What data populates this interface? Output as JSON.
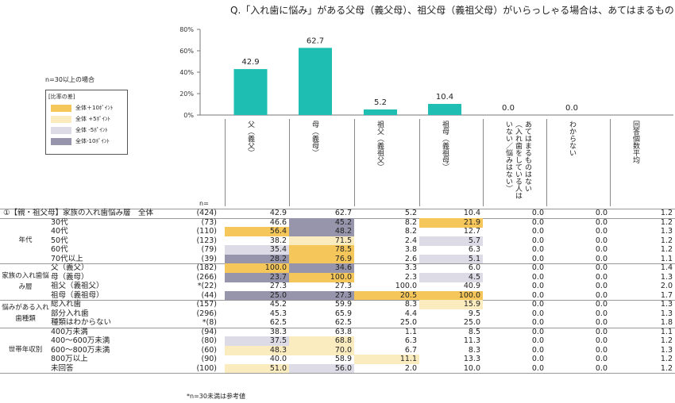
{
  "title": "Q.「入れ歯に悩み」がある父母（義父母）、祖父母（義祖父母）がいらっしゃる場合は、あてはまるものをすべてお",
  "note": "n=30以上の場合",
  "legend": {
    "title": "[比率の差]",
    "items": [
      {
        "label": "全体＋10ﾎﾟｲﾝﾄ",
        "color": "#f5c75a"
      },
      {
        "label": "全体 +5ﾎﾟｲﾝﾄ",
        "color": "#fbecc0"
      },
      {
        "label": "全体 -5ﾎﾟｲﾝﾄ",
        "color": "#dcdbe6"
      },
      {
        "label": "全体-10ﾎﾟｲﾝﾄ",
        "color": "#9695ab"
      }
    ]
  },
  "n_label": "n=",
  "footnote": "*n=30未満は参考値",
  "chart_data": {
    "type": "bar",
    "categories": [
      "父（義父）",
      "母（義母）",
      "祖父（義祖父）",
      "祖母（義祖母）",
      "あてはまるものはない（入れ歯をしている人はいない／悩みはない）",
      "わからない"
    ],
    "values": [
      42.9,
      62.7,
      5.2,
      10.4,
      0.0,
      0.0
    ],
    "value_labels": [
      "42.9",
      "62.7",
      "5.2",
      "10.4",
      "0.0",
      "0.0"
    ],
    "ylim": [
      0,
      80
    ],
    "yticks": [
      "0%",
      "20%",
      "40%",
      "60%",
      "80%"
    ],
    "bar_color": "#1ebfb2"
  },
  "columns": [
    "父（義父）",
    "母（義母）",
    "祖父（義祖父）",
    "祖母（義祖母）",
    "あてはまるものはない（入れ歯をしている人はいない／悩みはない）",
    "わからない",
    "回答個数平均"
  ],
  "table": {
    "total": {
      "label": "①【親・祖父母】家族の入れ歯悩み層　全体",
      "n": "(424)",
      "values": [
        "42.9",
        "62.7",
        "5.2",
        "10.4",
        "0.0",
        "0.0",
        "1.2"
      ],
      "hl": [
        "",
        "",
        "",
        "",
        "",
        "",
        ""
      ]
    },
    "groups": [
      {
        "label": "年代",
        "rows": [
          {
            "label": "30代",
            "n": "(73)",
            "values": [
              "46.6",
              "45.2",
              "8.2",
              "21.9",
              "0.0",
              "0.0",
              "1.2"
            ],
            "hl": [
              "",
              "m10",
              "",
              "p10",
              "",
              "",
              ""
            ]
          },
          {
            "label": "40代",
            "n": "(110)",
            "values": [
              "56.4",
              "48.2",
              "8.2",
              "12.7",
              "0.0",
              "0.0",
              "1.3"
            ],
            "hl": [
              "p10",
              "m10",
              "",
              "",
              "",
              "",
              ""
            ]
          },
          {
            "label": "50代",
            "n": "(123)",
            "values": [
              "38.2",
              "71.5",
              "2.4",
              "5.7",
              "0.0",
              "0.0",
              "1.2"
            ],
            "hl": [
              "",
              "p5",
              "",
              "m5",
              "",
              "",
              ""
            ]
          },
          {
            "label": "60代",
            "n": "(79)",
            "values": [
              "35.4",
              "78.5",
              "3.8",
              "6.3",
              "0.0",
              "0.0",
              "1.2"
            ],
            "hl": [
              "m5",
              "p10",
              "",
              "",
              "",
              "",
              ""
            ]
          },
          {
            "label": "70代以上",
            "n": "(39)",
            "values": [
              "28.2",
              "76.9",
              "2.6",
              "5.1",
              "0.0",
              "0.0",
              "1.1"
            ],
            "hl": [
              "m10",
              "p10",
              "",
              "m5",
              "",
              "",
              ""
            ]
          }
        ]
      },
      {
        "label": "家族の入れ歯悩み層",
        "rows": [
          {
            "label": "父（義父）",
            "n": "(182)",
            "values": [
              "100.0",
              "34.6",
              "3.3",
              "6.0",
              "0.0",
              "0.0",
              "1.4"
            ],
            "hl": [
              "p10",
              "m10",
              "",
              "",
              "",
              "",
              ""
            ]
          },
          {
            "label": "母（義母）",
            "n": "(266)",
            "values": [
              "23.7",
              "100.0",
              "2.3",
              "4.5",
              "0.0",
              "0.0",
              "1.3"
            ],
            "hl": [
              "m10",
              "p10",
              "",
              "m5",
              "",
              "",
              ""
            ]
          },
          {
            "label": "祖父（義祖父）",
            "n": "*(22)",
            "values": [
              "27.3",
              "27.3",
              "100.0",
              "40.9",
              "0.0",
              "0.0",
              "2.0"
            ],
            "hl": [
              "",
              "",
              "",
              "",
              "",
              "",
              ""
            ]
          },
          {
            "label": "祖母（義祖母）",
            "n": "(44)",
            "values": [
              "25.0",
              "27.3",
              "20.5",
              "100.0",
              "0.0",
              "0.0",
              "1.7"
            ],
            "hl": [
              "m10",
              "m10",
              "p10",
              "p10",
              "",
              "",
              ""
            ]
          }
        ]
      },
      {
        "label": "悩みがある入れ歯種類",
        "rows": [
          {
            "label": "総入れ歯",
            "n": "(157)",
            "values": [
              "45.2",
              "59.9",
              "8.3",
              "15.9",
              "0.0",
              "0.0",
              "1.3"
            ],
            "hl": [
              "",
              "",
              "",
              "p5",
              "",
              "",
              ""
            ]
          },
          {
            "label": "部分入れ歯",
            "n": "(296)",
            "values": [
              "45.3",
              "65.9",
              "4.4",
              "9.5",
              "0.0",
              "0.0",
              "1.3"
            ],
            "hl": [
              "",
              "",
              "",
              "",
              "",
              "",
              ""
            ]
          },
          {
            "label": "種類はわからない",
            "n": "*(8)",
            "values": [
              "62.5",
              "62.5",
              "25.0",
              "25.0",
              "0.0",
              "0.0",
              "1.8"
            ],
            "hl": [
              "",
              "",
              "",
              "",
              "",
              "",
              ""
            ]
          }
        ]
      },
      {
        "label": "世帯年収別",
        "rows": [
          {
            "label": "400万未満",
            "n": "(94)",
            "values": [
              "38.3",
              "63.8",
              "1.1",
              "8.5",
              "0.0",
              "0.0",
              "1.1"
            ],
            "hl": [
              "",
              "",
              "",
              "",
              "",
              "",
              ""
            ]
          },
          {
            "label": "400～600万未満",
            "n": "(80)",
            "values": [
              "37.5",
              "68.8",
              "6.3",
              "11.3",
              "0.0",
              "0.0",
              "1.2"
            ],
            "hl": [
              "m5",
              "p5",
              "",
              "",
              "",
              "",
              ""
            ]
          },
          {
            "label": "600～800万未満",
            "n": "(60)",
            "values": [
              "48.3",
              "70.0",
              "6.7",
              "8.3",
              "0.0",
              "0.0",
              "1.3"
            ],
            "hl": [
              "p5",
              "p5",
              "",
              "",
              "",
              "",
              ""
            ]
          },
          {
            "label": "800万以上",
            "n": "(90)",
            "values": [
              "40.0",
              "58.9",
              "11.1",
              "13.3",
              "0.0",
              "0.0",
              "1.2"
            ],
            "hl": [
              "",
              "",
              "p5",
              "",
              "",
              "",
              ""
            ]
          },
          {
            "label": "未回答",
            "n": "(100)",
            "values": [
              "51.0",
              "56.0",
              "2.0",
              "10.0",
              "0.0",
              "0.0",
              "1.2"
            ],
            "hl": [
              "p5",
              "m5",
              "",
              "",
              "",
              "",
              ""
            ]
          }
        ]
      }
    ]
  }
}
